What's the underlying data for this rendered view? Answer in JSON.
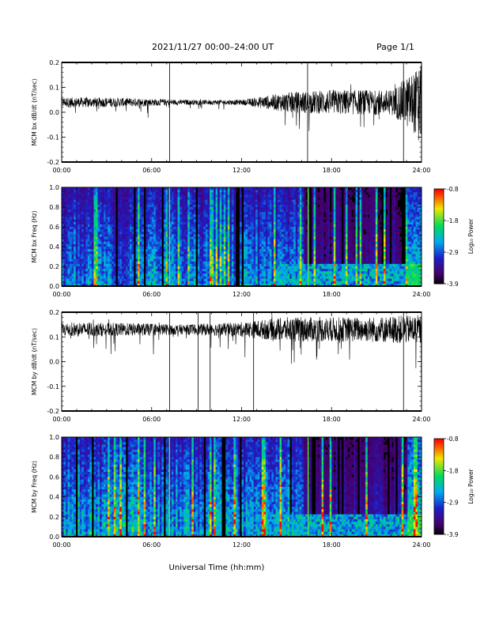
{
  "header": {
    "title": "2021/11/27  00:00–24:00 UT",
    "page": "Page 1/1"
  },
  "xaxis": {
    "label": "Universal Time (hh:mm)",
    "tick_labels": [
      "00:00",
      "06:00",
      "12:00",
      "18:00",
      "24:00"
    ]
  },
  "colorbar": {
    "label": "Log₁₀ Power",
    "tick_labels": [
      "-0.8",
      "-1.8",
      "-2.9",
      "-3.9"
    ],
    "range": [
      -3.9,
      -0.8
    ]
  },
  "chart_data": [
    {
      "type": "line",
      "ylabel": "MCM bx dB/dt (nT/sec)",
      "x_range_hours": [
        0,
        24
      ],
      "ylim": [
        -0.2,
        0.2
      ],
      "yticks": [
        "0.2",
        "0.1",
        "0.0",
        "-0.1",
        "-0.2"
      ],
      "baseline": 0.04,
      "spikes_hours": [
        7.2,
        16.4,
        22.8
      ],
      "noise_envelope": [
        {
          "x": 0,
          "amp": 0.02
        },
        {
          "x": 3,
          "amp": 0.02
        },
        {
          "x": 6,
          "amp": 0.015
        },
        {
          "x": 8,
          "amp": 0.01
        },
        {
          "x": 12,
          "amp": 0.01
        },
        {
          "x": 15,
          "amp": 0.04
        },
        {
          "x": 18,
          "amp": 0.05
        },
        {
          "x": 22,
          "amp": 0.05
        },
        {
          "x": 24,
          "amp": 0.15
        }
      ]
    },
    {
      "type": "heatmap",
      "ylabel": "MCM bx Freq (Hz)",
      "x_range_hours": [
        0,
        24
      ],
      "ylim": [
        0.0,
        1.0
      ],
      "yticks": [
        "1.0",
        "0.8",
        "0.6",
        "0.4",
        "0.2",
        "0.0"
      ],
      "zlim": [
        -3.9,
        -0.8
      ]
    },
    {
      "type": "line",
      "ylabel": "MCM by dB/dt (nT/sec)",
      "x_range_hours": [
        0,
        24
      ],
      "ylim": [
        -0.2,
        0.2
      ],
      "yticks": [
        "0.2",
        "0.1",
        "0.0",
        "-0.1",
        "-0.2"
      ],
      "baseline": 0.13,
      "spikes_hours": [
        7.2,
        9.1,
        9.9,
        12.8,
        22.8
      ],
      "noise_envelope": [
        {
          "x": 0,
          "amp": 0.03
        },
        {
          "x": 6,
          "amp": 0.025
        },
        {
          "x": 8,
          "amp": 0.02
        },
        {
          "x": 12,
          "amp": 0.03
        },
        {
          "x": 15,
          "amp": 0.05
        },
        {
          "x": 20,
          "amp": 0.05
        },
        {
          "x": 24,
          "amp": 0.06
        }
      ]
    },
    {
      "type": "heatmap",
      "ylabel": "MCM by Freq (Hz)",
      "x_range_hours": [
        0,
        24
      ],
      "ylim": [
        0.0,
        1.0
      ],
      "yticks": [
        "1.0",
        "0.8",
        "0.6",
        "0.4",
        "0.2",
        "0.0"
      ],
      "zlim": [
        -3.9,
        -0.8
      ]
    }
  ]
}
